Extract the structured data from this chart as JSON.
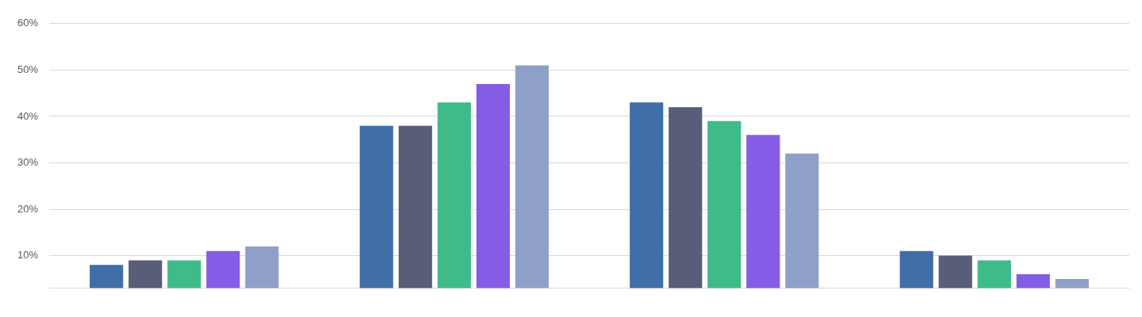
{
  "chart_data": {
    "type": "bar",
    "categories": [
      null,
      null,
      null,
      null
    ],
    "series": [
      {
        "color": "#406ea8",
        "values": [
          8,
          38,
          43,
          11
        ]
      },
      {
        "color": "#585d78",
        "values": [
          9,
          38,
          42,
          10
        ]
      },
      {
        "color": "#3fbb8a",
        "values": [
          9,
          43,
          39,
          9
        ]
      },
      {
        "color": "#855ce6",
        "values": [
          11,
          47,
          36,
          6
        ]
      },
      {
        "color": "#8fa0c8",
        "values": [
          12,
          51,
          32,
          5
        ]
      }
    ],
    "ylim": [
      3,
      60
    ],
    "yticks": [
      {
        "value": 10,
        "label": "10%"
      },
      {
        "value": 20,
        "label": "20%"
      },
      {
        "value": 30,
        "label": "30%"
      },
      {
        "value": 40,
        "label": "40%"
      },
      {
        "value": 50,
        "label": "50%"
      },
      {
        "value": 60,
        "label": "60%"
      }
    ],
    "grid": "y",
    "legend": false
  }
}
